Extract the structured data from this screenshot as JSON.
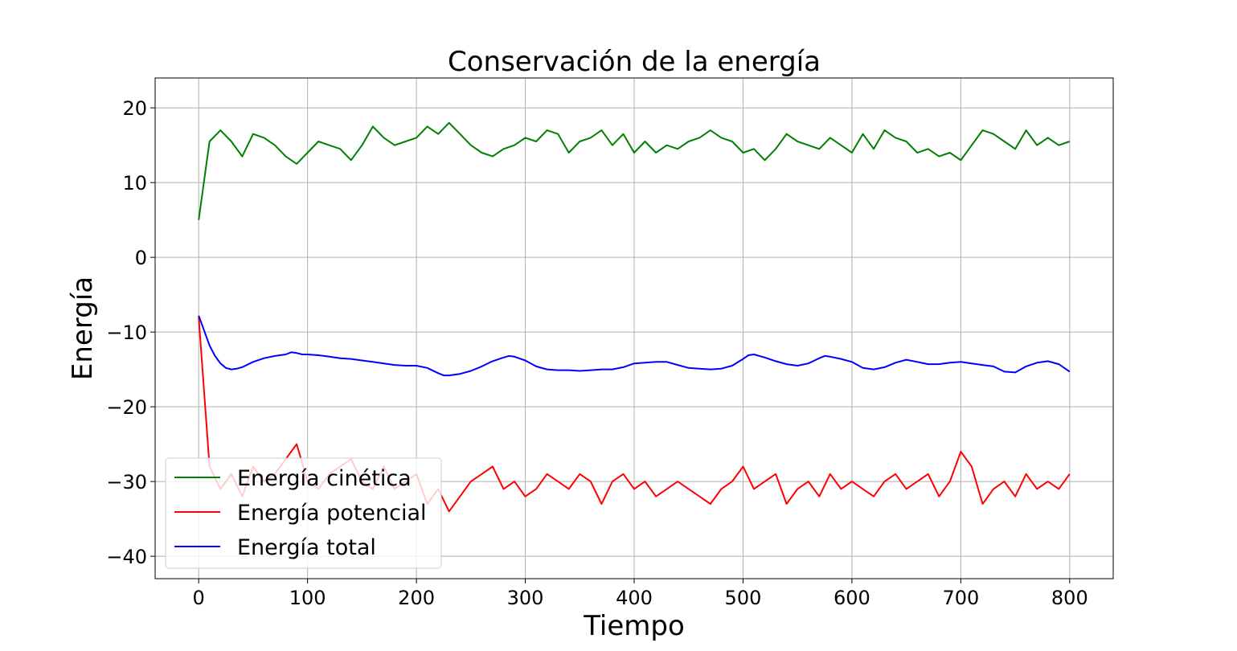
{
  "chart_data": {
    "type": "line",
    "title": "Conservación de la energía",
    "xlabel": "Tiempo",
    "ylabel": "Energía",
    "xlim": [
      -40,
      840
    ],
    "ylim": [
      -43,
      24
    ],
    "xticks": [
      0,
      100,
      200,
      300,
      400,
      500,
      600,
      700,
      800
    ],
    "yticks": [
      -40,
      -30,
      -20,
      -10,
      0,
      10,
      20
    ],
    "xtick_labels": [
      "0",
      "100",
      "200",
      "300",
      "400",
      "500",
      "600",
      "700",
      "800"
    ],
    "ytick_labels": [
      "−40",
      "−30",
      "−20",
      "−10",
      "0",
      "10",
      "20"
    ],
    "grid": true,
    "legend": "lower-left",
    "colors": {
      "kinetic": "#008000",
      "potential": "#ff0000",
      "total": "#0000ff"
    },
    "series": [
      {
        "name": "Energía cinética",
        "x": [
          0,
          10,
          20,
          30,
          40,
          50,
          60,
          70,
          80,
          90,
          100,
          110,
          120,
          130,
          140,
          150,
          160,
          170,
          180,
          190,
          200,
          210,
          220,
          230,
          240,
          250,
          260,
          270,
          280,
          290,
          300,
          310,
          320,
          330,
          340,
          350,
          360,
          370,
          380,
          390,
          400,
          410,
          420,
          430,
          440,
          450,
          460,
          470,
          480,
          490,
          500,
          510,
          520,
          530,
          540,
          550,
          560,
          570,
          580,
          590,
          600,
          610,
          620,
          630,
          640,
          650,
          660,
          670,
          680,
          690,
          700,
          710,
          720,
          730,
          740,
          750,
          760,
          770,
          780,
          790,
          800
        ],
        "values": [
          5,
          15.5,
          17,
          15.5,
          13.5,
          16.5,
          16,
          15,
          13.5,
          12.5,
          14,
          15.5,
          15,
          14.5,
          13,
          15,
          17.5,
          16,
          15,
          15.5,
          16,
          17.5,
          16.5,
          18,
          16.5,
          15,
          14,
          13.5,
          14.5,
          15,
          16,
          15.5,
          17,
          16.5,
          14,
          15.5,
          16,
          17,
          15,
          16.5,
          14,
          15.5,
          14,
          15,
          14.5,
          15.5,
          16,
          17,
          16,
          15.5,
          14,
          14.5,
          13,
          14.5,
          16.5,
          15.5,
          15,
          14.5,
          16,
          15,
          14,
          16.5,
          14.5,
          17,
          16,
          15.5,
          14,
          14.5,
          13.5,
          14,
          13,
          15,
          17,
          16.5,
          15.5,
          14.5,
          17,
          15,
          16,
          15,
          15.5
        ]
      },
      {
        "name": "Energía potencial",
        "x": [
          0,
          10,
          20,
          30,
          40,
          50,
          60,
          70,
          80,
          90,
          100,
          110,
          120,
          130,
          140,
          150,
          160,
          170,
          180,
          190,
          200,
          210,
          220,
          230,
          240,
          250,
          260,
          270,
          280,
          290,
          300,
          310,
          320,
          330,
          340,
          350,
          360,
          370,
          380,
          390,
          400,
          410,
          420,
          430,
          440,
          450,
          460,
          470,
          480,
          490,
          500,
          510,
          520,
          530,
          540,
          550,
          560,
          570,
          580,
          590,
          600,
          610,
          620,
          630,
          640,
          650,
          660,
          670,
          680,
          690,
          700,
          710,
          720,
          730,
          740,
          750,
          760,
          770,
          780,
          790,
          800
        ],
        "values": [
          -8,
          -28,
          -31,
          -29,
          -32,
          -28,
          -30,
          -29,
          -27,
          -25,
          -30,
          -31,
          -29,
          -28,
          -27,
          -30,
          -31,
          -28,
          -31,
          -30,
          -29,
          -33,
          -31,
          -34,
          -32,
          -30,
          -29,
          -28,
          -31,
          -30,
          -32,
          -31,
          -29,
          -30,
          -31,
          -29,
          -30,
          -33,
          -30,
          -29,
          -31,
          -30,
          -32,
          -31,
          -30,
          -31,
          -32,
          -33,
          -31,
          -30,
          -28,
          -31,
          -30,
          -29,
          -33,
          -31,
          -30,
          -32,
          -29,
          -31,
          -30,
          -31,
          -32,
          -30,
          -29,
          -31,
          -30,
          -29,
          -32,
          -30,
          -26,
          -28,
          -33,
          -31,
          -30,
          -32,
          -29,
          -31,
          -30,
          -31,
          -29
        ]
      },
      {
        "name": "Energía total",
        "x": [
          0,
          5,
          10,
          15,
          20,
          25,
          30,
          35,
          40,
          50,
          60,
          70,
          80,
          85,
          90,
          95,
          100,
          110,
          120,
          130,
          140,
          150,
          160,
          170,
          180,
          190,
          200,
          210,
          220,
          225,
          230,
          240,
          250,
          260,
          270,
          280,
          285,
          290,
          300,
          310,
          320,
          330,
          340,
          350,
          360,
          370,
          380,
          390,
          400,
          410,
          420,
          430,
          440,
          450,
          460,
          470,
          480,
          490,
          500,
          505,
          510,
          520,
          530,
          540,
          550,
          560,
          570,
          575,
          580,
          590,
          600,
          610,
          620,
          630,
          640,
          650,
          660,
          670,
          680,
          690,
          700,
          710,
          720,
          730,
          740,
          750,
          760,
          770,
          780,
          790,
          800
        ],
        "values": [
          -7.8,
          -9.8,
          -11.8,
          -13.2,
          -14.2,
          -14.8,
          -15,
          -14.9,
          -14.7,
          -14,
          -13.5,
          -13.2,
          -13,
          -12.7,
          -12.8,
          -13,
          -13,
          -13.1,
          -13.3,
          -13.5,
          -13.6,
          -13.8,
          -14,
          -14.2,
          -14.4,
          -14.5,
          -14.5,
          -14.8,
          -15.5,
          -15.8,
          -15.8,
          -15.6,
          -15.2,
          -14.6,
          -13.9,
          -13.4,
          -13.2,
          -13.3,
          -13.8,
          -14.6,
          -15,
          -15.1,
          -15.1,
          -15.2,
          -15.1,
          -15,
          -15,
          -14.7,
          -14.2,
          -14.1,
          -14,
          -14,
          -14.4,
          -14.8,
          -14.9,
          -15,
          -14.9,
          -14.5,
          -13.6,
          -13.1,
          -13,
          -13.4,
          -13.9,
          -14.3,
          -14.5,
          -14.2,
          -13.5,
          -13.2,
          -13.3,
          -13.6,
          -14,
          -14.8,
          -15,
          -14.7,
          -14.1,
          -13.7,
          -14,
          -14.3,
          -14.3,
          -14.1,
          -14,
          -14.2,
          -14.4,
          -14.6,
          -15.3,
          -15.4,
          -14.6,
          -14.1,
          -13.9,
          -14.3,
          -15.3
        ]
      }
    ]
  }
}
